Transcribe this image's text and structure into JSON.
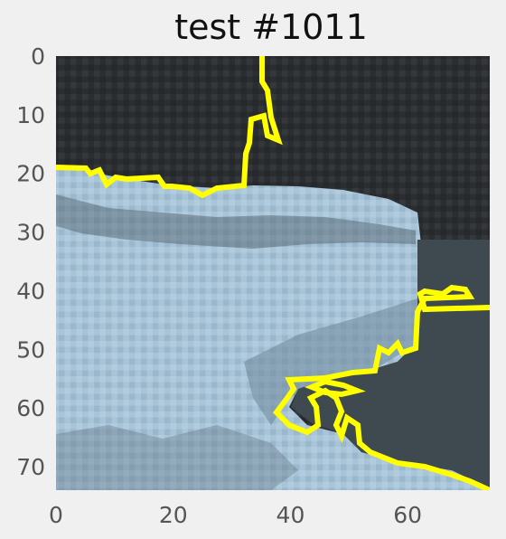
{
  "title": "test #1011",
  "image": {
    "grid_cols": 74,
    "grid_rows": 74,
    "regions": {
      "sky_color": "#2b2e31",
      "land_color": "#a8c4d8",
      "land_dark_color": "#7b93a8",
      "water_color": "#3f4a50",
      "contour_color": "#ffff00"
    }
  },
  "axes": {
    "x_ticks": [
      {
        "value": 0,
        "label": "0"
      },
      {
        "value": 20,
        "label": "20"
      },
      {
        "value": 40,
        "label": "40"
      },
      {
        "value": 60,
        "label": "60"
      }
    ],
    "y_ticks": [
      {
        "value": 0,
        "label": "0"
      },
      {
        "value": 10,
        "label": "10"
      },
      {
        "value": 20,
        "label": "20"
      },
      {
        "value": 30,
        "label": "30"
      },
      {
        "value": 40,
        "label": "40"
      },
      {
        "value": 50,
        "label": "50"
      },
      {
        "value": 60,
        "label": "60"
      },
      {
        "value": 70,
        "label": "70"
      }
    ],
    "x_range": [
      0,
      74
    ],
    "y_range": [
      0,
      74
    ]
  }
}
